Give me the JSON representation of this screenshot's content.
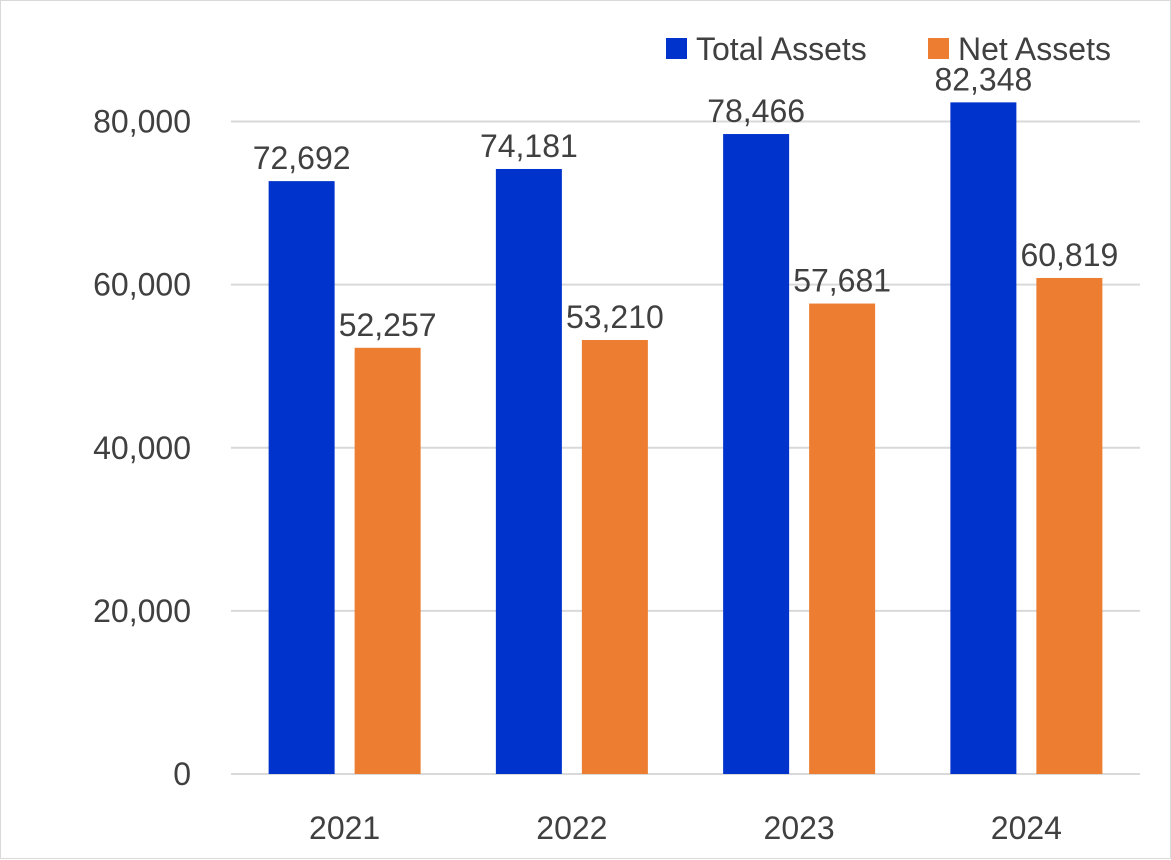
{
  "chart_data": {
    "type": "bar",
    "title": "",
    "xlabel": "",
    "ylabel": "",
    "categories": [
      "2021",
      "2022",
      "2023",
      "2024"
    ],
    "series": [
      {
        "name": "Total Assets",
        "color": "#0033CC",
        "values": [
          72692,
          74181,
          78466,
          82348
        ],
        "labels": [
          "72,692",
          "74,181",
          "78,466",
          "82,348"
        ]
      },
      {
        "name": "Net Assets",
        "color": "#ED7D31",
        "values": [
          52257,
          53210,
          57681,
          60819
        ],
        "labels": [
          "52,257",
          "53,210",
          "57,681",
          "60,819"
        ]
      }
    ],
    "ylim": [
      0,
      80000
    ],
    "yticks": [
      0,
      20000,
      40000,
      60000,
      80000
    ],
    "ytick_labels": [
      "0",
      "20,000",
      "40,000",
      "60,000",
      "80,000"
    ],
    "grid": true,
    "legend_position": "top-right",
    "gridline_color": "#d9d9d9",
    "text_color": "#404040"
  }
}
